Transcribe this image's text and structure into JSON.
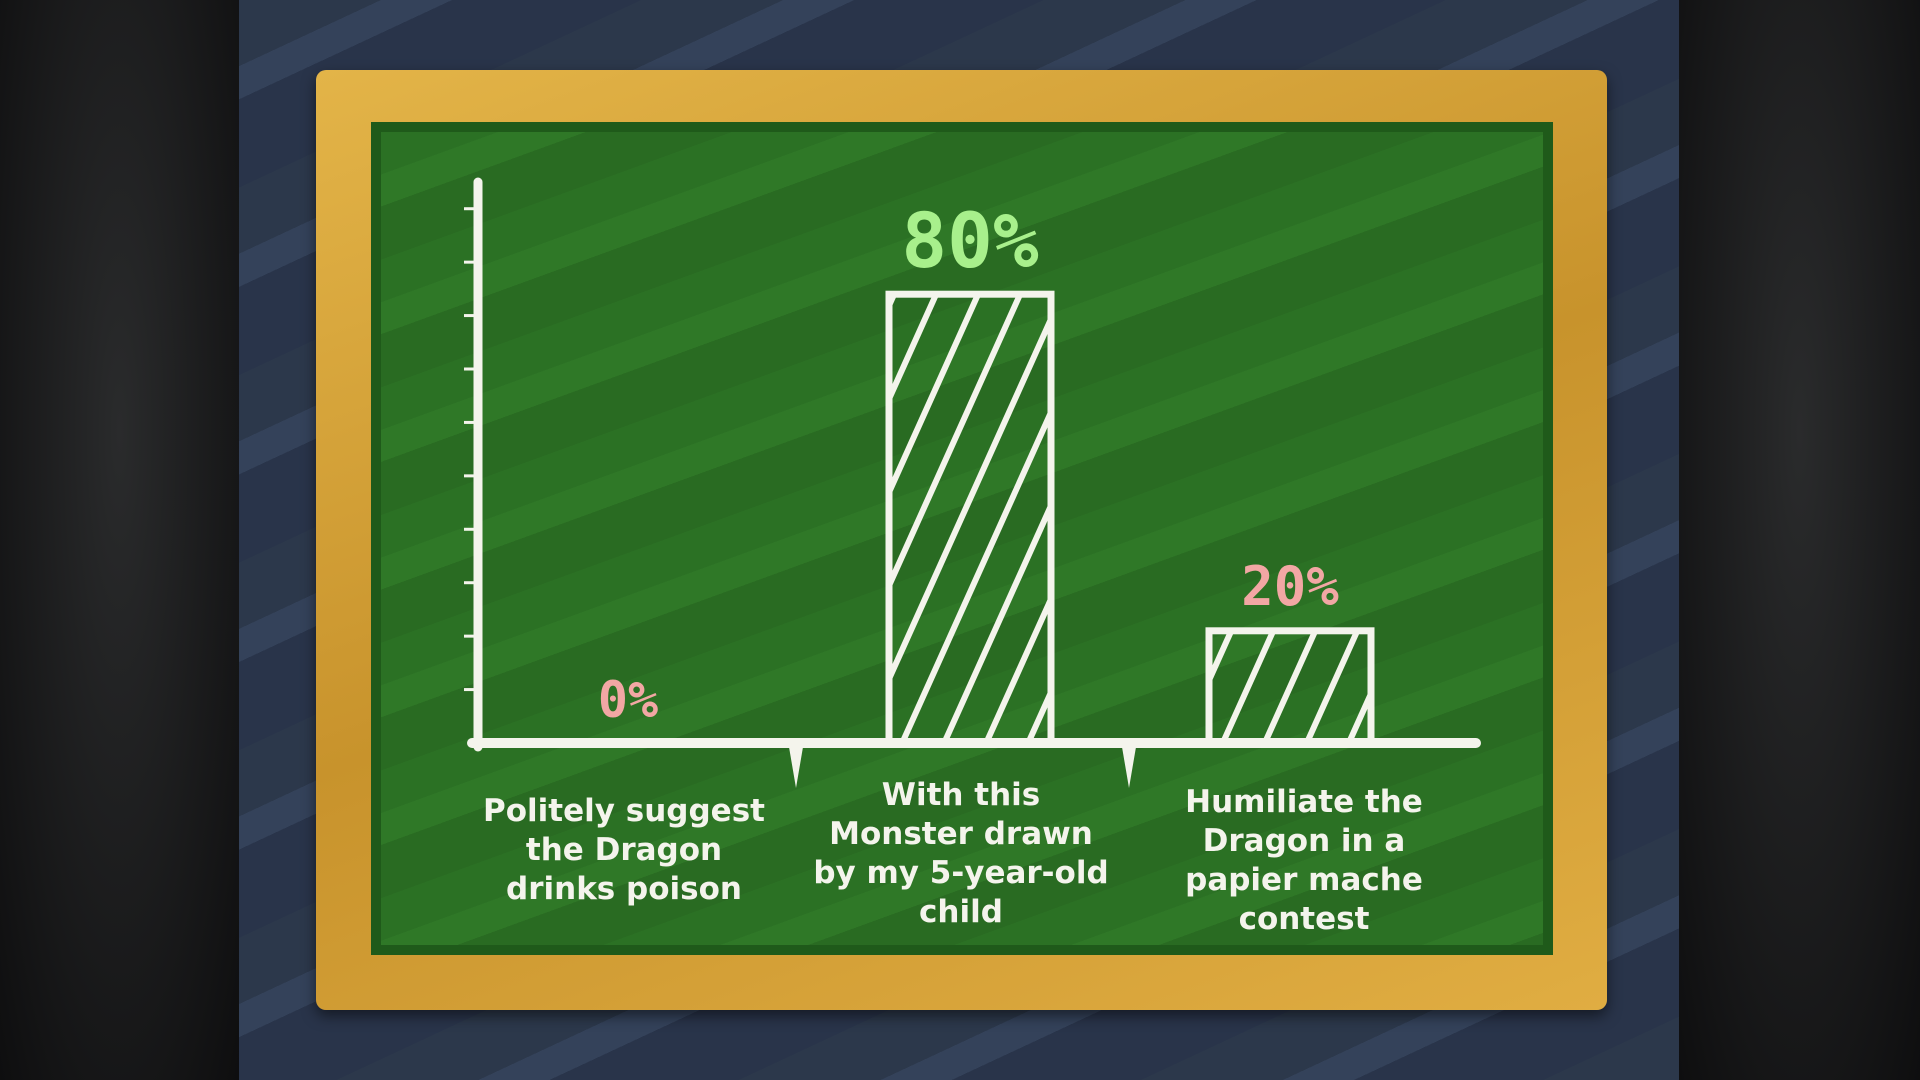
{
  "chart_data": {
    "type": "bar",
    "categories": [
      "Politely suggest the Dragon drinks poison",
      "With this Monster drawn by my 5-year-old child",
      "Humiliate the Dragon in a papier mache contest"
    ],
    "category_lines": [
      [
        "Politely suggest",
        "the Dragon",
        "drinks poison"
      ],
      [
        "With this",
        "Monster drawn",
        "by my 5-year-old",
        "child"
      ],
      [
        "Humiliate the",
        "Dragon in a",
        "papier mache",
        "contest"
      ]
    ],
    "values": [
      0,
      80,
      20
    ],
    "value_labels": [
      "0%",
      "80%",
      "20%"
    ],
    "value_label_colors": [
      "#f2a7a4",
      "#a8f08c",
      "#f2a7a4"
    ],
    "ylim": [
      0,
      100
    ],
    "grid": false,
    "bar_style": "chalk-hatched",
    "chalk_color": "#f4f4ec",
    "board_color": "#2b7124",
    "frame_color": "#d9a83a"
  }
}
